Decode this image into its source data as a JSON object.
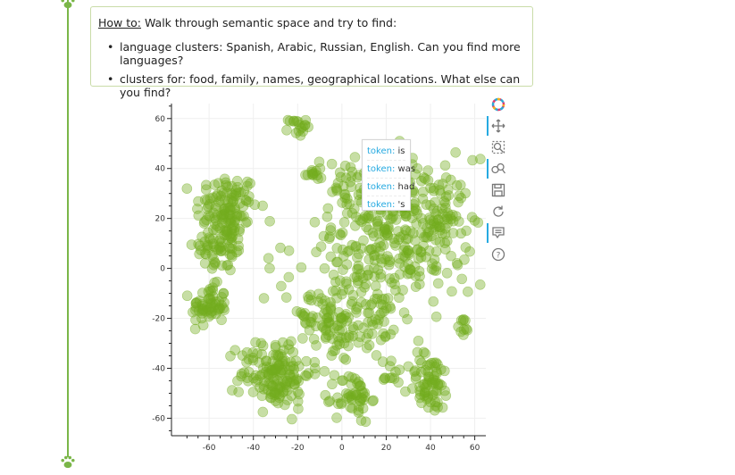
{
  "instructions": {
    "howto_label": "How to:",
    "howto_text": " Walk through semantic space and try to find:",
    "bullets": [
      "language clusters: Spanish, Arabic, Russian, English. Can you find more languages?",
      "clusters for: food, family, names, geographical locations. What else can you find?"
    ]
  },
  "theme": {
    "accent": "#7ab648",
    "point_color": "#74ad1f",
    "tool_active": "#26aae1"
  },
  "toolbar": [
    "bokeh-logo-icon",
    "pan-icon",
    "box-zoom-icon",
    "wheel-zoom-icon",
    "save-icon",
    "reset-icon",
    "hover-icon",
    "help-icon"
  ],
  "tooltip": {
    "rows": [
      {
        "label": "token:",
        "value": "is"
      },
      {
        "label": "token:",
        "value": "was"
      },
      {
        "label": "token:",
        "value": "had"
      },
      {
        "label": "token:",
        "value": "'s"
      }
    ]
  },
  "chart_data": {
    "type": "scatter",
    "xlim": [
      -77,
      65
    ],
    "ylim": [
      -67,
      66
    ],
    "xticks": [
      -60,
      -40,
      -20,
      0,
      20,
      40,
      60
    ],
    "yticks": [
      -60,
      -40,
      -20,
      0,
      20,
      40,
      60
    ],
    "grid": true,
    "clusters": [
      {
        "cx": -52,
        "cy": 24,
        "sx": 7,
        "sy": 7,
        "n": 120
      },
      {
        "cx": -55,
        "cy": 8,
        "sx": 6,
        "sy": 5,
        "n": 60
      },
      {
        "cx": -60,
        "cy": -15,
        "sx": 4,
        "sy": 4,
        "n": 60
      },
      {
        "cx": -20,
        "cy": 57,
        "sx": 2,
        "sy": 2,
        "n": 18
      },
      {
        "cx": -13,
        "cy": 38,
        "sx": 2,
        "sy": 2,
        "n": 14
      },
      {
        "cx": 28,
        "cy": 18,
        "sx": 16,
        "sy": 13,
        "n": 260
      },
      {
        "cx": 10,
        "cy": 32,
        "sx": 8,
        "sy": 6,
        "n": 60
      },
      {
        "cx": 48,
        "cy": 20,
        "sx": 4,
        "sy": 6,
        "n": 30
      },
      {
        "cx": 10,
        "cy": -5,
        "sx": 18,
        "sy": 8,
        "n": 90
      },
      {
        "cx": -10,
        "cy": -20,
        "sx": 8,
        "sy": 5,
        "n": 50
      },
      {
        "cx": 0,
        "cy": -28,
        "sx": 5,
        "sy": 6,
        "n": 40
      },
      {
        "cx": -30,
        "cy": -42,
        "sx": 8,
        "sy": 7,
        "n": 150
      },
      {
        "cx": 5,
        "cy": -52,
        "sx": 4,
        "sy": 5,
        "n": 50
      },
      {
        "cx": 40,
        "cy": -46,
        "sx": 5,
        "sy": 6,
        "n": 70
      },
      {
        "cx": 55,
        "cy": -23,
        "sx": 1,
        "sy": 2,
        "n": 10
      },
      {
        "cx": 22,
        "cy": -42,
        "sx": 3,
        "sy": 3,
        "n": 12
      },
      {
        "cx": 18,
        "cy": -22,
        "sx": 4,
        "sy": 6,
        "n": 30
      }
    ]
  }
}
